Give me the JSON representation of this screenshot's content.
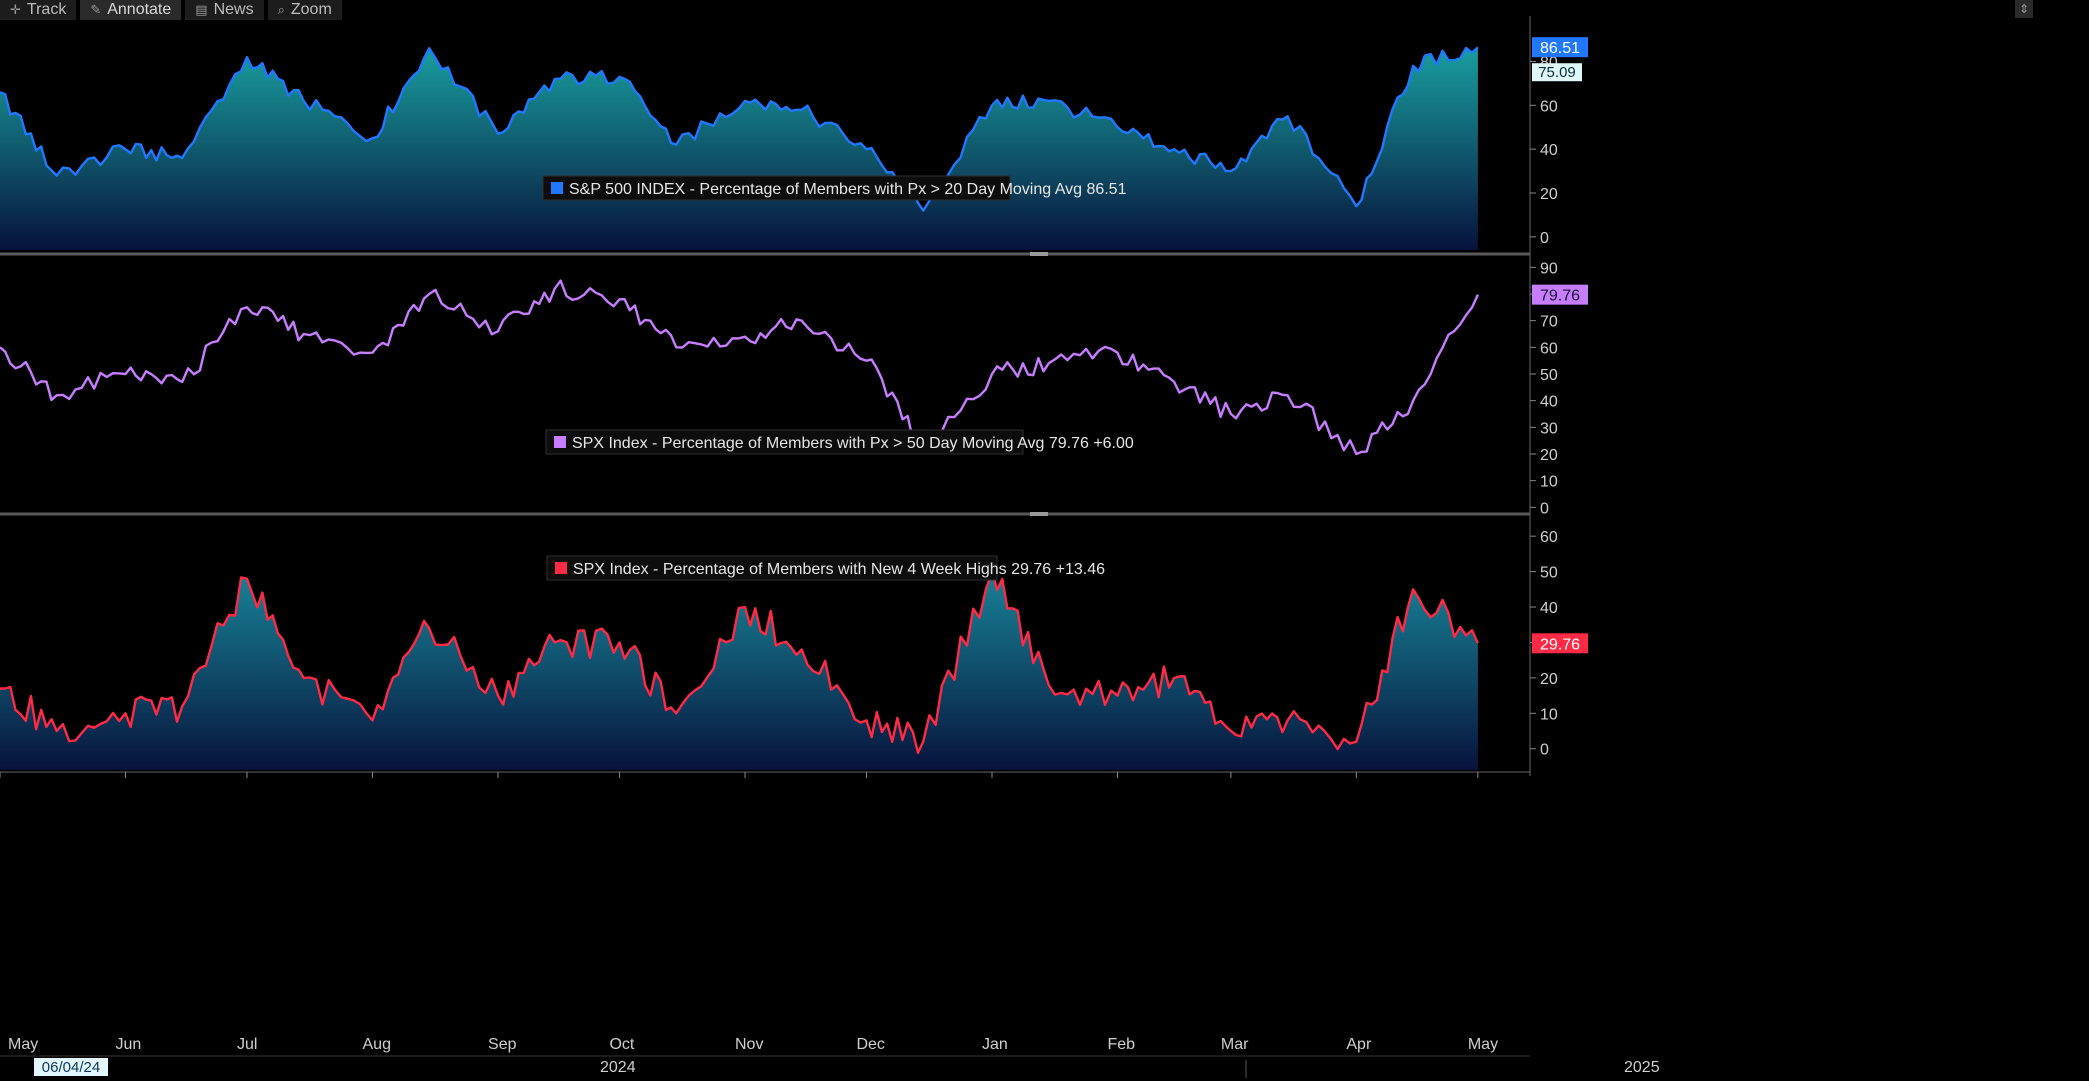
{
  "toolbar": {
    "items": [
      {
        "label": "Track",
        "icon": "crosshair-icon"
      },
      {
        "label": "Annotate",
        "icon": "pencil-icon"
      },
      {
        "label": "News",
        "icon": "newspaper-icon"
      },
      {
        "label": "Zoom",
        "icon": "magnifier-icon"
      }
    ]
  },
  "x_axis": {
    "months": [
      "May",
      "Jun",
      "Jul",
      "Aug",
      "Sep",
      "Oct",
      "Nov",
      "Dec",
      "Jan",
      "Feb",
      "Mar",
      "Apr",
      "May"
    ],
    "years": [
      "2024",
      "2025"
    ],
    "cursor_date": "06/04/24"
  },
  "chart_data": [
    {
      "type": "area",
      "title": "",
      "legend": "S&P 500 INDEX - Percentage of Members with Px > 20 Day Moving Avg 86.51",
      "color": "#1f78ff",
      "ylim": [
        -6,
        98
      ],
      "yticks": [
        0,
        20,
        40,
        60,
        80
      ],
      "last_value_label": "86.51",
      "extra_value_label": "75.09",
      "extra_value": 75.09,
      "x": [
        "2024-05-01",
        "2024-05-15",
        "2024-06-01",
        "2024-06-15",
        "2024-07-01",
        "2024-07-15",
        "2024-08-01",
        "2024-08-15",
        "2024-09-01",
        "2024-09-15",
        "2024-10-01",
        "2024-10-15",
        "2024-11-01",
        "2024-11-15",
        "2024-12-01",
        "2024-12-15",
        "2025-01-01",
        "2025-01-15",
        "2025-02-01",
        "2025-02-15",
        "2025-03-01",
        "2025-03-15",
        "2025-04-01",
        "2025-04-15",
        "2025-05-01"
      ],
      "values": [
        66,
        28,
        40,
        36,
        82,
        62,
        45,
        86,
        47,
        72,
        73,
        42,
        62,
        58,
        40,
        12,
        60,
        62,
        50,
        40,
        30,
        55,
        14,
        78,
        86.51
      ]
    },
    {
      "type": "line",
      "title": "",
      "legend": "SPX Index - Percentage of Members with Px > 50 Day Moving Avg 79.76  +6.00",
      "color": "#c77dff",
      "ylim": [
        -1,
        92
      ],
      "yticks": [
        0,
        10,
        20,
        30,
        40,
        50,
        60,
        70,
        80,
        90
      ],
      "last_value_label": "79.76",
      "x": [
        "2024-05-01",
        "2024-05-15",
        "2024-06-01",
        "2024-06-15",
        "2024-07-01",
        "2024-07-15",
        "2024-08-01",
        "2024-08-15",
        "2024-09-01",
        "2024-09-15",
        "2024-10-01",
        "2024-10-15",
        "2024-11-01",
        "2024-11-15",
        "2024-12-01",
        "2024-12-15",
        "2025-01-01",
        "2025-01-15",
        "2025-02-01",
        "2025-02-15",
        "2025-03-01",
        "2025-03-15",
        "2025-04-01",
        "2025-04-15",
        "2025-05-01"
      ],
      "values": [
        60,
        42,
        50,
        47,
        75,
        65,
        58,
        80,
        66,
        82,
        78,
        60,
        64,
        70,
        55,
        22,
        50,
        54,
        58,
        47,
        35,
        42,
        20,
        40,
        79.76
      ]
    },
    {
      "type": "area",
      "title": "",
      "legend": "SPX Index - Percentage of Members with New 4 Week Highs 29.76  +13.46",
      "color": "#ff2a45",
      "ylim": [
        -6,
        64
      ],
      "yticks": [
        0,
        10,
        20,
        30,
        40,
        50,
        60
      ],
      "last_value_label": "29.76",
      "x": [
        "2024-05-01",
        "2024-05-15",
        "2024-06-01",
        "2024-06-15",
        "2024-07-01",
        "2024-07-15",
        "2024-08-01",
        "2024-08-15",
        "2024-09-01",
        "2024-09-15",
        "2024-10-01",
        "2024-10-15",
        "2024-11-01",
        "2024-11-15",
        "2024-12-01",
        "2024-12-15",
        "2025-01-01",
        "2025-01-15",
        "2025-02-01",
        "2025-02-15",
        "2025-03-01",
        "2025-03-15",
        "2025-04-01",
        "2025-04-15",
        "2025-05-01"
      ],
      "values": [
        17,
        5,
        10,
        12,
        48,
        20,
        8,
        34,
        15,
        30,
        30,
        10,
        40,
        28,
        8,
        2,
        50,
        18,
        15,
        20,
        5,
        8,
        2,
        45,
        29.76
      ]
    }
  ]
}
